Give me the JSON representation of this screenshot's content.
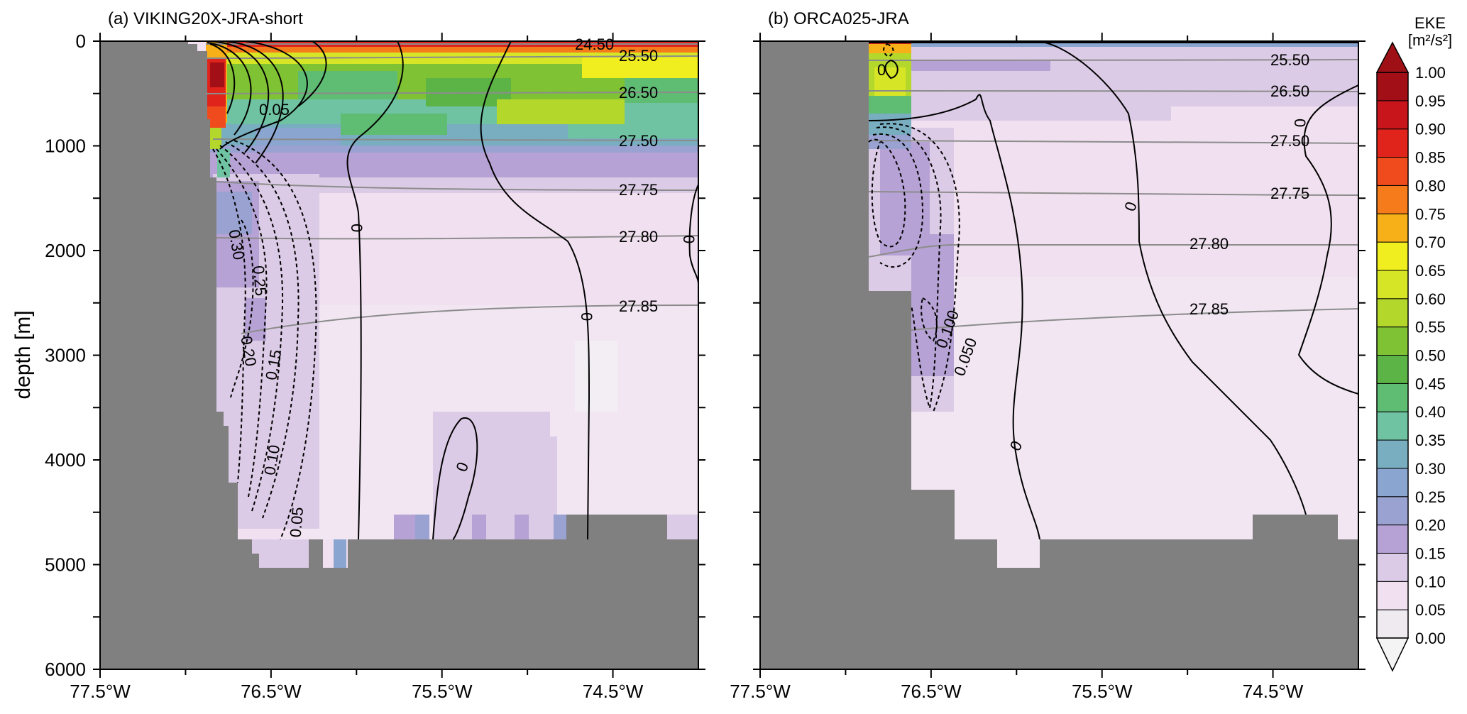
{
  "figure": {
    "ylabel": "depth [m]"
  },
  "chart_data": [
    {
      "type": "heatmap",
      "title": "(a) VIKING20X-JRA-short",
      "xlabel": "",
      "ylabel": "depth [m]",
      "x_range": [
        -77.5,
        -74.0
      ],
      "y_range": [
        0,
        6000
      ],
      "x_ticks": [
        -77.5,
        -76.5,
        -75.5,
        -74.5
      ],
      "x_tick_labels": [
        "77.5°W",
        "76.5°W",
        "75.5°W",
        "74.5°W"
      ],
      "y_ticks": [
        0,
        1000,
        2000,
        3000,
        4000,
        5000,
        6000
      ],
      "y_tick_labels": [
        "0",
        "1000",
        "2000",
        "3000",
        "4000",
        "5000",
        "6000"
      ],
      "grid": false,
      "fill_value": "EKE",
      "density_contour_labels": [
        "24.50",
        "25.50",
        "26.50",
        "27.50",
        "27.75",
        "27.80",
        "27.85"
      ],
      "velocity_contour_labels": [
        "0.05",
        "0",
        "0.30",
        "0.25",
        "0.20",
        "0.15",
        "0.10",
        "0.05",
        "0",
        "0"
      ]
    },
    {
      "type": "heatmap",
      "title": "(b) ORCA025-JRA",
      "xlabel": "",
      "ylabel": "",
      "x_range": [
        -77.5,
        -74.0
      ],
      "y_range": [
        0,
        6000
      ],
      "x_ticks": [
        -77.5,
        -76.5,
        -75.5,
        -74.5
      ],
      "x_tick_labels": [
        "77.5°W",
        "76.5°W",
        "75.5°W",
        "74.5°W"
      ],
      "grid": false,
      "fill_value": "EKE",
      "density_contour_labels": [
        "25.50",
        "26.50",
        "27.50",
        "27.75",
        "27.80",
        "27.85"
      ],
      "velocity_contour_labels": [
        "0",
        "0",
        "0",
        "0.100",
        "0.050",
        "0"
      ]
    }
  ],
  "colorbar": {
    "title": "EKE",
    "unit": "[m²/s²]",
    "levels": [
      "0.00",
      "0.05",
      "0.10",
      "0.15",
      "0.20",
      "0.25",
      "0.30",
      "0.35",
      "0.40",
      "0.45",
      "0.50",
      "0.55",
      "0.60",
      "0.65",
      "0.70",
      "0.75",
      "0.80",
      "0.85",
      "0.90",
      "0.95",
      "1.00"
    ],
    "colors": [
      "#eeeaf0",
      "#f1e0f0",
      "#dccbe6",
      "#b6a2d4",
      "#9aa2d2",
      "#8aa5d0",
      "#78aec0",
      "#6fc3a2",
      "#5fbc73",
      "#5cb446",
      "#7fc233",
      "#b4d72c",
      "#d6e626",
      "#f1ee1f",
      "#f7b018",
      "#f57b1b",
      "#f04b1c",
      "#e0241c",
      "#c8141b",
      "#a30f16"
    ],
    "under_color": "#f4f4f4",
    "over_color": "#9e1016"
  },
  "colors": {
    "land": "#808080",
    "density_contour": "#8c8c8c",
    "velocity_contour": "#000000"
  }
}
